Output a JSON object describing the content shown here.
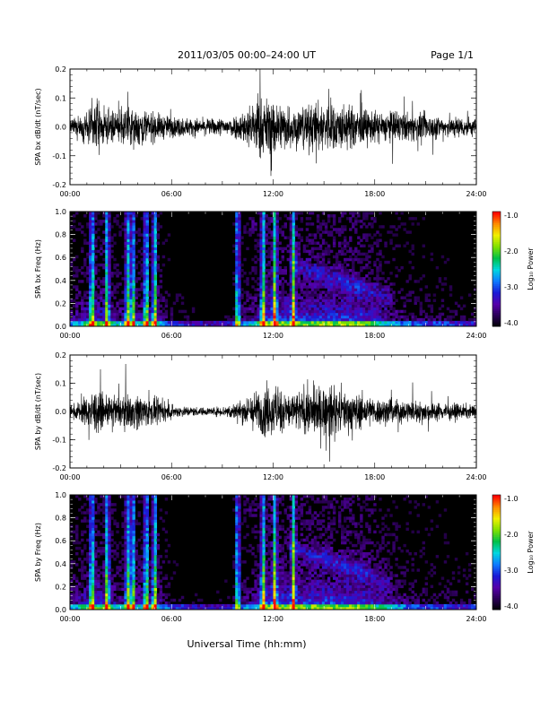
{
  "header": {
    "title": "2011/03/05   00:00–24:00 UT",
    "page": "Page 1/1"
  },
  "xlabel": "Universal Time (hh:mm)",
  "colorbar": {
    "label": "Log₁₀ Power",
    "ticks": [
      "-1.0",
      "-2.0",
      "-3.0",
      "-4.0"
    ],
    "range": [
      -4.0,
      -1.0
    ],
    "colors": [
      "#000000",
      "#2a0055",
      "#5500aa",
      "#1b1bd6",
      "#0f7bff",
      "#00d7e0",
      "#00c04a",
      "#7fe000",
      "#f0f000",
      "#ff8c00",
      "#ff0000"
    ]
  },
  "chart_data": [
    {
      "type": "line",
      "ylabel": "SPA bx dB/dt (nT/sec)",
      "xlim": [
        0,
        24
      ],
      "ylim": [
        -0.2,
        0.2
      ],
      "xticks": [
        "00:00",
        "06:00",
        "12:00",
        "18:00",
        "24:00"
      ],
      "yticks": [
        "0.2",
        "0.1",
        "0.0",
        "-0.1",
        "-0.2"
      ],
      "envelope_hours": [
        0,
        1,
        1.5,
        2,
        3,
        4,
        5,
        6,
        7,
        8,
        9,
        10,
        10.5,
        11,
        11.5,
        12,
        12.5,
        13,
        14,
        15,
        16,
        17,
        18,
        19,
        20,
        21,
        22,
        23,
        24
      ],
      "envelope_amplitude": [
        0.05,
        0.11,
        0.2,
        0.12,
        0.13,
        0.15,
        0.11,
        0.08,
        0.07,
        0.06,
        0.07,
        0.1,
        0.16,
        0.22,
        0.22,
        0.22,
        0.19,
        0.16,
        0.17,
        0.2,
        0.18,
        0.15,
        0.12,
        0.12,
        0.11,
        0.1,
        0.09,
        0.08,
        0.07
      ]
    },
    {
      "type": "heatmap",
      "ylabel": "SPA bx Freq (Hz)",
      "xlim": [
        0,
        24
      ],
      "ylim": [
        0.0,
        1.0
      ],
      "xticks": [
        "00:00",
        "06:00",
        "12:00",
        "18:00",
        "24:00"
      ],
      "yticks": [
        "1.0",
        "0.8",
        "0.6",
        "0.4",
        "0.2",
        "0.0"
      ],
      "color_scale": "Log10 Power",
      "zlim": [
        -4.0,
        -1.0
      ]
    },
    {
      "type": "line",
      "ylabel": "SPA by dB/dt (nT/sec)",
      "xlim": [
        0,
        24
      ],
      "ylim": [
        -0.2,
        0.2
      ],
      "xticks": [
        "00:00",
        "06:00",
        "12:00",
        "18:00",
        "24:00"
      ],
      "yticks": [
        "0.2",
        "0.1",
        "0.0",
        "-0.1",
        "-0.2"
      ],
      "envelope_hours": [
        0,
        1,
        1.5,
        2,
        3,
        4,
        5,
        6,
        7,
        8,
        9,
        10,
        10.5,
        11,
        11.5,
        12,
        12.5,
        13,
        14,
        15,
        16,
        17,
        18,
        19,
        20,
        21,
        22,
        23,
        24
      ],
      "envelope_amplitude": [
        0.04,
        0.12,
        0.18,
        0.11,
        0.12,
        0.14,
        0.1,
        0.05,
        0.04,
        0.03,
        0.04,
        0.08,
        0.12,
        0.16,
        0.19,
        0.2,
        0.17,
        0.15,
        0.18,
        0.2,
        0.17,
        0.14,
        0.11,
        0.1,
        0.09,
        0.08,
        0.07,
        0.06,
        0.05
      ]
    },
    {
      "type": "heatmap",
      "ylabel": "SPA by Freq (Hz)",
      "xlim": [
        0,
        24
      ],
      "ylim": [
        0.0,
        1.0
      ],
      "xticks": [
        "00:00",
        "06:00",
        "12:00",
        "18:00",
        "24:00"
      ],
      "yticks": [
        "1.0",
        "0.8",
        "0.6",
        "0.4",
        "0.2",
        "0.0"
      ],
      "color_scale": "Log10 Power",
      "zlim": [
        -4.0,
        -1.0
      ]
    }
  ]
}
